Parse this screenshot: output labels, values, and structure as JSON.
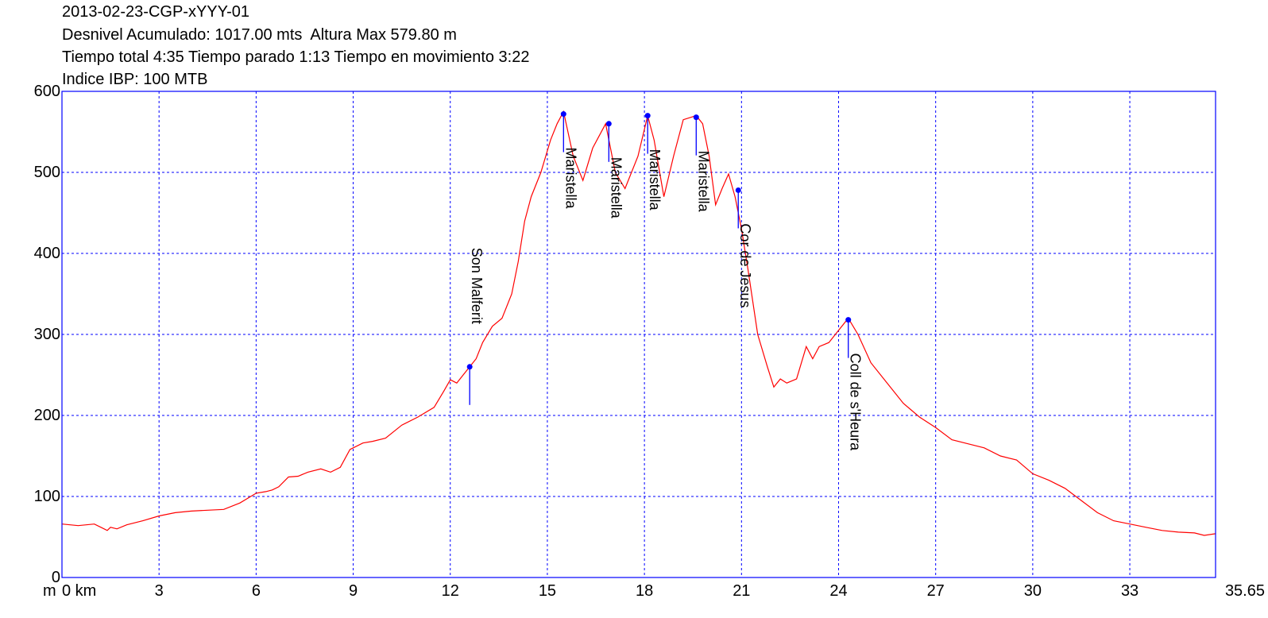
{
  "header": {
    "line1": "2013-02-23-CGP-xYYY-01",
    "line2": "Desnivel Acumulado: 1017.00 mts  Altura Max 579.80 m",
    "line3": "Tiempo total 4:35 Tiempo parado 1:13 Tiempo en movimiento 3:22",
    "line4": "Indice IBP: 100 MTB"
  },
  "colors": {
    "profile": "#ff0000",
    "grid": "#0000ff",
    "frame": "#0000ff",
    "waypoint": "#0000ff"
  },
  "chart_data": {
    "type": "line",
    "title": "2013-02-23-CGP-xYYY-01",
    "xlabel": "km",
    "ylabel": "m",
    "xlim": [
      0,
      35.65
    ],
    "ylim": [
      0,
      600
    ],
    "grid": true,
    "x_ticks": [
      "0 km",
      "3",
      "6",
      "9",
      "12",
      "15",
      "18",
      "21",
      "24",
      "27",
      "30",
      "33",
      "35.65"
    ],
    "x_tick_values": [
      0,
      3,
      6,
      9,
      12,
      15,
      18,
      21,
      24,
      27,
      30,
      33,
      35.65
    ],
    "y_ticks": [
      "0",
      "100",
      "200",
      "300",
      "400",
      "500",
      "600"
    ],
    "y_tick_values": [
      0,
      100,
      200,
      300,
      400,
      500,
      600
    ],
    "y_axis_unit": "m",
    "series": [
      {
        "x": [
          0,
          0.5,
          1,
          1.4,
          1.5,
          1.7,
          2,
          2.5,
          3,
          3.5,
          4,
          4.5,
          5,
          5.5,
          6,
          6.3,
          6.5,
          6.7,
          7,
          7.3,
          7.6,
          8,
          8.3,
          8.6,
          8.9,
          9,
          9.3,
          9.6,
          10,
          10.5,
          11,
          11.5,
          11.8,
          12,
          12.2,
          12.4,
          12.6,
          12.8,
          13,
          13.3,
          13.6,
          13.9,
          14.1,
          14.3,
          14.5,
          14.8,
          15.1,
          15.3,
          15.5,
          15.8,
          16.1,
          16.4,
          16.8,
          17.1,
          17.4,
          17.8,
          18.1,
          18.3,
          18.6,
          18.9,
          19.2,
          19.6,
          19.8,
          20,
          20.2,
          20.4,
          20.6,
          20.8,
          21,
          21.2,
          21.5,
          21.8,
          22,
          22.2,
          22.4,
          22.7,
          23,
          23.2,
          23.4,
          23.7,
          24,
          24.3,
          24.6,
          25,
          25.5,
          26,
          26.5,
          27,
          27.5,
          28,
          28.5,
          29,
          29.5,
          30,
          30.5,
          31,
          31.5,
          32,
          32.5,
          33,
          33.5,
          34,
          34.5,
          35,
          35.3,
          35.65
        ],
        "y": [
          66,
          64,
          66,
          58,
          62,
          60,
          65,
          70,
          76,
          80,
          82,
          83,
          84,
          92,
          104,
          106,
          108,
          112,
          124,
          125,
          130,
          134,
          130,
          136,
          158,
          160,
          166,
          168,
          172,
          188,
          198,
          210,
          230,
          244,
          240,
          250,
          260,
          270,
          290,
          310,
          320,
          350,
          390,
          440,
          470,
          500,
          540,
          560,
          575,
          520,
          490,
          530,
          560,
          500,
          480,
          520,
          570,
          540,
          470,
          520,
          565,
          570,
          560,
          520,
          460,
          480,
          498,
          470,
          430,
          380,
          300,
          260,
          235,
          245,
          240,
          245,
          285,
          270,
          285,
          290,
          305,
          320,
          300,
          265,
          240,
          215,
          198,
          185,
          170,
          165,
          160,
          150,
          145,
          128,
          120,
          110,
          95,
          80,
          70,
          66,
          62,
          58,
          56,
          55,
          52,
          54
        ]
      }
    ],
    "waypoints": [
      {
        "name": "Son Malferit",
        "x": 12.6,
        "y": 260
      },
      {
        "name": "Maristella",
        "x": 15.5,
        "y": 572
      },
      {
        "name": "Maristella",
        "x": 16.9,
        "y": 560
      },
      {
        "name": "Maristella",
        "x": 18.1,
        "y": 570
      },
      {
        "name": "Maristella",
        "x": 19.6,
        "y": 568
      },
      {
        "name": "Cor de Jesus",
        "x": 20.9,
        "y": 478
      },
      {
        "name": "Coll de s'Heura",
        "x": 24.3,
        "y": 318
      }
    ]
  }
}
